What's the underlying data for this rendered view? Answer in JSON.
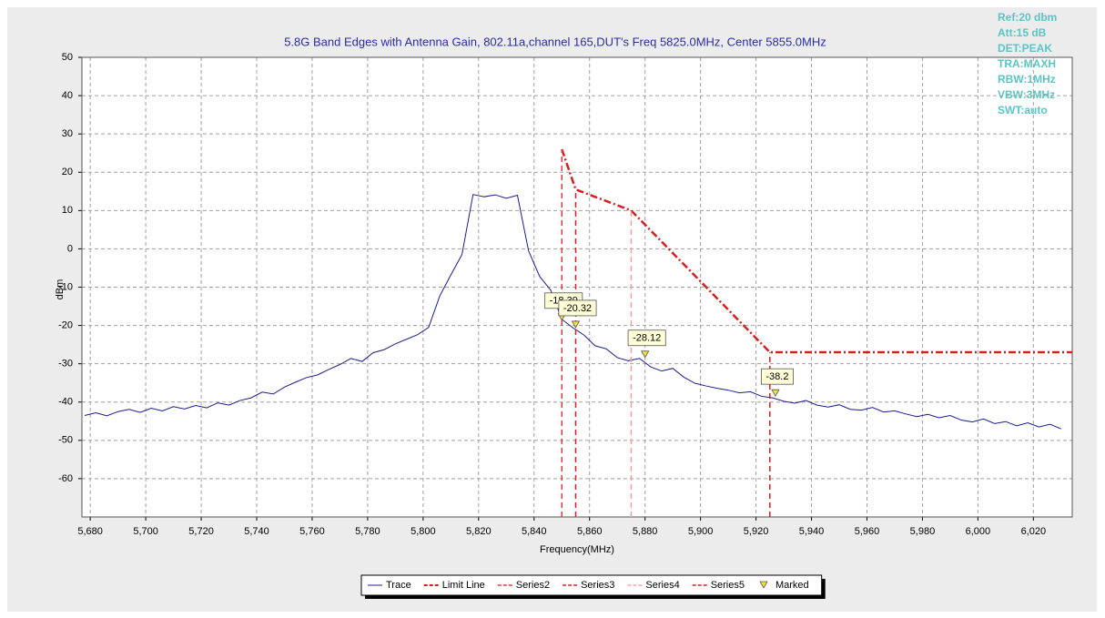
{
  "chart_data": {
    "type": "line",
    "title": "5.8G Band Edges with Antenna Gain, 802.11a,channel 165,DUT's Freq 5825.0MHz, Center 5855.0MHz",
    "xlabel": "Frequency(MHz)",
    "ylabel": "dBm",
    "annotations": [
      "Ref:20 dbm",
      "Att:15 dB",
      "DET:PEAK",
      "TRA:MAXH",
      "RBW:1MHz",
      "VBW:3MHz",
      "SWT:auto"
    ],
    "xlim": [
      5677,
      6034
    ],
    "ylim": [
      -70,
      50
    ],
    "xticks": [
      {
        "value": 5680,
        "label": "5,680"
      },
      {
        "value": 5700,
        "label": "5,700"
      },
      {
        "value": 5720,
        "label": "5,720"
      },
      {
        "value": 5740,
        "label": "5,740"
      },
      {
        "value": 5760,
        "label": "5,760"
      },
      {
        "value": 5780,
        "label": "5,780"
      },
      {
        "value": 5800,
        "label": "5,800"
      },
      {
        "value": 5820,
        "label": "5,820"
      },
      {
        "value": 5840,
        "label": "5,840"
      },
      {
        "value": 5860,
        "label": "5,860"
      },
      {
        "value": 5880,
        "label": "5,880"
      },
      {
        "value": 5900,
        "label": "5,900"
      },
      {
        "value": 5920,
        "label": "5,920"
      },
      {
        "value": 5940,
        "label": "5,940"
      },
      {
        "value": 5960,
        "label": "5,960"
      },
      {
        "value": 5980,
        "label": "5,980"
      },
      {
        "value": 6000,
        "label": "6,000"
      },
      {
        "value": 6020,
        "label": "6,020"
      }
    ],
    "yticks": [
      -60,
      -50,
      -40,
      -30,
      -20,
      -10,
      0,
      10,
      20,
      30,
      40,
      50
    ],
    "grid": true,
    "legend": "bottom",
    "series": [
      {
        "name": "Trace",
        "color": "#1c1c8a",
        "dash": "solid",
        "width": 1,
        "x": [
          5678,
          5682,
          5686,
          5690,
          5694,
          5698,
          5702,
          5706,
          5710,
          5714,
          5718,
          5722,
          5726,
          5730,
          5734,
          5738,
          5742,
          5746,
          5750,
          5754,
          5758,
          5762,
          5766,
          5770,
          5774,
          5778,
          5782,
          5786,
          5790,
          5794,
          5798,
          5802,
          5806,
          5810,
          5814,
          5818,
          5822,
          5826,
          5830,
          5834,
          5838,
          5842,
          5846,
          5850,
          5854,
          5858,
          5862,
          5866,
          5870,
          5874,
          5878,
          5882,
          5886,
          5890,
          5894,
          5898,
          5902,
          5906,
          5910,
          5914,
          5918,
          5922,
          5926,
          5930,
          5934,
          5938,
          5942,
          5946,
          5950,
          5954,
          5958,
          5962,
          5966,
          5970,
          5974,
          5978,
          5982,
          5986,
          5990,
          5994,
          5998,
          6002,
          6006,
          6010,
          6014,
          6018,
          6022,
          6026,
          6030
        ],
        "values": [
          -43.5,
          -42.8,
          -43.6,
          -42.5,
          -41.9,
          -42.7,
          -41.6,
          -42.3,
          -41.2,
          -41.8,
          -40.9,
          -41.5,
          -40.2,
          -40.8,
          -39.6,
          -38.9,
          -37.4,
          -37.9,
          -36.1,
          -34.8,
          -33.6,
          -32.9,
          -31.5,
          -30.2,
          -28.6,
          -29.4,
          -27.1,
          -26.3,
          -24.8,
          -23.6,
          -22.4,
          -20.5,
          -12.3,
          -6.8,
          -1.5,
          14.2,
          13.6,
          14.1,
          13.2,
          14.0,
          -0.5,
          -7.2,
          -10.8,
          -18.4,
          -20.6,
          -22.5,
          -25.3,
          -26.1,
          -28.4,
          -29.2,
          -28.6,
          -30.8,
          -31.9,
          -31.2,
          -33.5,
          -35.1,
          -35.8,
          -36.4,
          -36.9,
          -37.6,
          -37.3,
          -38.5,
          -38.9,
          -39.8,
          -40.3,
          -39.6,
          -40.8,
          -41.3,
          -40.7,
          -41.9,
          -42.1,
          -41.4,
          -42.6,
          -42.3,
          -43.1,
          -43.8,
          -43.2,
          -44.1,
          -43.5,
          -44.7,
          -45.2,
          -44.4,
          -45.6,
          -45.1,
          -46.2,
          -45.4,
          -46.5,
          -45.8,
          -47.0
        ]
      },
      {
        "name": "Limit Line",
        "color": "#d42020",
        "dash": "dashdot",
        "width": 2.5,
        "x": [
          5850,
          5855,
          5875,
          5925,
          6034
        ],
        "values": [
          26,
          15.5,
          10,
          -27,
          -27
        ]
      },
      {
        "name": "Series2",
        "color": "#e03c3c",
        "dash": "dashed",
        "width": 1.5,
        "x": [
          5850,
          5850
        ],
        "values": [
          -70,
          26
        ]
      },
      {
        "name": "Series3",
        "color": "#d42020",
        "dash": "dashed",
        "width": 1.5,
        "x": [
          5855,
          5855
        ],
        "values": [
          -70,
          15.5
        ]
      },
      {
        "name": "Series4",
        "color": "#f4a0a0",
        "dash": "dashed",
        "width": 1.5,
        "x": [
          5875,
          5875
        ],
        "values": [
          -70,
          10
        ]
      },
      {
        "name": "Series5",
        "color": "#d42020",
        "dash": "dashed",
        "width": 1.5,
        "x": [
          5925,
          5925
        ],
        "values": [
          -70,
          -27
        ]
      },
      {
        "name": "Marked",
        "color": "#f0e040",
        "dash": "none",
        "marker": "triangle",
        "x": [
          5850,
          5855,
          5880,
          5927
        ],
        "values": [
          -18.39,
          -20.32,
          -28.12,
          -38.2
        ],
        "value_labels": [
          "-18.39",
          "-20.32",
          "-28.12",
          "-38.2"
        ]
      }
    ]
  }
}
